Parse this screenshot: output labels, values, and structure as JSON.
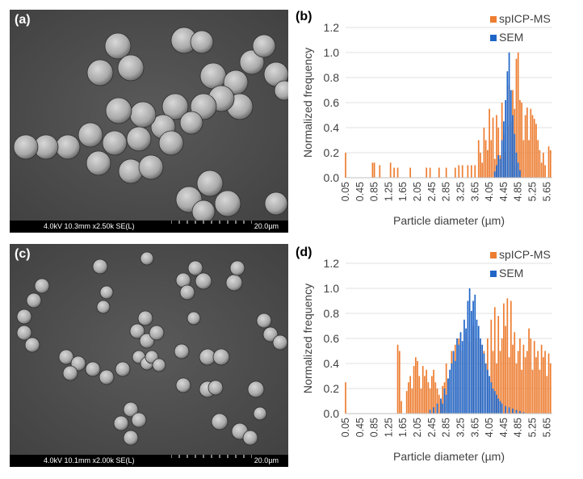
{
  "panels": [
    {
      "label": "(a)",
      "sem_info": "4.0kV 10.3mm x2.50k SE(L)",
      "sem_scale": "20.0µm"
    },
    {
      "label": "(c)",
      "sem_info": "4.0kV 10.1mm x2.00k SE(L)",
      "sem_scale": "20.0µm"
    }
  ],
  "chart_data": [
    {
      "panel_label": "(b)",
      "type": "bar",
      "ylabel": "Normalized frequency",
      "xlabel": "Particle diameter (µm)",
      "ylim": [
        0,
        1.2
      ],
      "yticks": [
        "0.0",
        "0.2",
        "0.4",
        "0.6",
        "0.8",
        "1.0",
        "1.2"
      ],
      "xticks": [
        "0.05",
        "0.45",
        "0.85",
        "1.25",
        "1.65",
        "2.05",
        "2.45",
        "2.85",
        "3.25",
        "3.65",
        "4.05",
        "4.45",
        "4.85",
        "5.25",
        "5.65"
      ],
      "grid": true,
      "legend_position": "top-right",
      "series": [
        {
          "name": "spICP-MS",
          "color": "#ed7d31",
          "points": [
            [
              0.05,
              0.2
            ],
            [
              0.8,
              0.12
            ],
            [
              0.85,
              0.12
            ],
            [
              1.0,
              0.1
            ],
            [
              1.3,
              0.12
            ],
            [
              1.4,
              0.08
            ],
            [
              1.5,
              0.08
            ],
            [
              1.85,
              0.08
            ],
            [
              2.3,
              0.08
            ],
            [
              2.4,
              0.08
            ],
            [
              2.65,
              0.08
            ],
            [
              2.85,
              0.08
            ],
            [
              3.1,
              0.08
            ],
            [
              3.2,
              0.1
            ],
            [
              3.3,
              0.1
            ],
            [
              3.45,
              0.1
            ],
            [
              3.55,
              0.1
            ],
            [
              3.65,
              0.1
            ],
            [
              3.75,
              0.3
            ],
            [
              3.8,
              0.2
            ],
            [
              3.85,
              0.12
            ],
            [
              3.9,
              0.4
            ],
            [
              3.95,
              0.3
            ],
            [
              4.0,
              0.22
            ],
            [
              4.05,
              0.55
            ],
            [
              4.1,
              0.3
            ],
            [
              4.15,
              0.48
            ],
            [
              4.2,
              0.15
            ],
            [
              4.25,
              0.5
            ],
            [
              4.3,
              0.4
            ],
            [
              4.35,
              0.18
            ],
            [
              4.4,
              0.6
            ],
            [
              4.45,
              0.35
            ],
            [
              4.5,
              0.2
            ],
            [
              4.55,
              0.42
            ],
            [
              4.6,
              0.74
            ],
            [
              4.65,
              0.45
            ],
            [
              4.7,
              0.7
            ],
            [
              4.75,
              0.55
            ],
            [
              4.8,
              0.95
            ],
            [
              4.85,
              1.0
            ],
            [
              4.9,
              0.62
            ],
            [
              4.95,
              0.6
            ],
            [
              5.0,
              0.3
            ],
            [
              5.05,
              0.5
            ],
            [
              5.1,
              0.56
            ],
            [
              5.15,
              0.3
            ],
            [
              5.2,
              0.55
            ],
            [
              5.25,
              0.5
            ],
            [
              5.3,
              0.47
            ],
            [
              5.35,
              0.43
            ],
            [
              5.4,
              0.3
            ],
            [
              5.45,
              0.22
            ],
            [
              5.5,
              0.12
            ],
            [
              5.55,
              0.2
            ],
            [
              5.6,
              0.1
            ],
            [
              5.7,
              0.25
            ],
            [
              5.75,
              0.22
            ]
          ]
        },
        {
          "name": "SEM",
          "color": "#1f65c8",
          "points": [
            [
              4.2,
              0.05
            ],
            [
              4.25,
              0.1
            ],
            [
              4.3,
              0.18
            ],
            [
              4.35,
              0.15
            ],
            [
              4.4,
              0.3
            ],
            [
              4.45,
              0.45
            ],
            [
              4.5,
              0.62
            ],
            [
              4.55,
              0.85
            ],
            [
              4.6,
              1.0
            ],
            [
              4.65,
              0.7
            ],
            [
              4.7,
              0.5
            ],
            [
              4.75,
              0.35
            ],
            [
              4.8,
              0.2
            ],
            [
              4.85,
              0.12
            ],
            [
              4.9,
              0.06
            ]
          ]
        }
      ]
    },
    {
      "panel_label": "(d)",
      "type": "bar",
      "ylabel": "Normalized frequency",
      "xlabel": "Particle diameter (µm)",
      "ylim": [
        0,
        1.2
      ],
      "yticks": [
        "0.0",
        "0.2",
        "0.4",
        "0.6",
        "0.8",
        "1.0",
        "1.2"
      ],
      "xticks": [
        "0.05",
        "0.45",
        "0.85",
        "1.25",
        "1.65",
        "2.05",
        "2.45",
        "2.85",
        "3.25",
        "3.65",
        "4.05",
        "4.45",
        "4.85",
        "5.25",
        "5.65"
      ],
      "grid": true,
      "legend_position": "top-right",
      "series": [
        {
          "name": "spICP-MS",
          "color": "#ed7d31",
          "points": [
            [
              0.05,
              0.25
            ],
            [
              1.5,
              0.55
            ],
            [
              1.55,
              0.5
            ],
            [
              1.6,
              0.1
            ],
            [
              1.75,
              0.18
            ],
            [
              1.8,
              0.25
            ],
            [
              1.85,
              0.3
            ],
            [
              1.9,
              0.2
            ],
            [
              1.95,
              0.38
            ],
            [
              2.0,
              0.45
            ],
            [
              2.05,
              0.42
            ],
            [
              2.1,
              0.3
            ],
            [
              2.15,
              0.2
            ],
            [
              2.2,
              0.38
            ],
            [
              2.25,
              0.3
            ],
            [
              2.3,
              0.35
            ],
            [
              2.35,
              0.25
            ],
            [
              2.4,
              0.2
            ],
            [
              2.45,
              0.3
            ],
            [
              2.5,
              0.35
            ],
            [
              2.55,
              0.25
            ],
            [
              2.6,
              0.2
            ],
            [
              2.65,
              0.15
            ],
            [
              2.7,
              0.1
            ],
            [
              2.75,
              0.22
            ],
            [
              2.8,
              0.25
            ],
            [
              2.85,
              0.4
            ],
            [
              2.9,
              0.28
            ],
            [
              3.0,
              0.5
            ],
            [
              3.1,
              0.55
            ],
            [
              3.2,
              0.6
            ],
            [
              3.3,
              0.5
            ],
            [
              3.4,
              0.65
            ],
            [
              3.5,
              0.58
            ],
            [
              3.6,
              0.7
            ],
            [
              3.7,
              0.6
            ],
            [
              3.8,
              0.55
            ],
            [
              3.9,
              0.5
            ],
            [
              4.0,
              0.6
            ],
            [
              4.1,
              0.75
            ],
            [
              4.15,
              0.5
            ],
            [
              4.2,
              0.85
            ],
            [
              4.25,
              0.4
            ],
            [
              4.3,
              0.78
            ],
            [
              4.35,
              0.5
            ],
            [
              4.4,
              0.6
            ],
            [
              4.45,
              0.88
            ],
            [
              4.5,
              0.7
            ],
            [
              4.55,
              0.92
            ],
            [
              4.6,
              0.45
            ],
            [
              4.65,
              0.9
            ],
            [
              4.7,
              0.55
            ],
            [
              4.75,
              0.65
            ],
            [
              4.8,
              0.4
            ],
            [
              4.85,
              0.5
            ],
            [
              4.9,
              0.6
            ],
            [
              4.95,
              0.35
            ],
            [
              5.0,
              0.55
            ],
            [
              5.05,
              0.45
            ],
            [
              5.1,
              0.5
            ],
            [
              5.15,
              0.68
            ],
            [
              5.2,
              0.6
            ],
            [
              5.25,
              0.35
            ],
            [
              5.3,
              0.58
            ],
            [
              5.35,
              0.45
            ],
            [
              5.4,
              0.5
            ],
            [
              5.45,
              0.35
            ],
            [
              5.5,
              0.55
            ],
            [
              5.55,
              0.45
            ],
            [
              5.6,
              0.5
            ],
            [
              5.65,
              0.3
            ],
            [
              5.7,
              0.48
            ],
            [
              5.75,
              0.4
            ]
          ]
        },
        {
          "name": "SEM",
          "color": "#1f65c8",
          "points": [
            [
              2.4,
              0.03
            ],
            [
              2.5,
              0.05
            ],
            [
              2.6,
              0.08
            ],
            [
              2.7,
              0.12
            ],
            [
              2.75,
              0.08
            ],
            [
              2.8,
              0.2
            ],
            [
              2.85,
              0.15
            ],
            [
              2.9,
              0.28
            ],
            [
              2.95,
              0.35
            ],
            [
              3.0,
              0.4
            ],
            [
              3.05,
              0.5
            ],
            [
              3.1,
              0.42
            ],
            [
              3.15,
              0.6
            ],
            [
              3.2,
              0.55
            ],
            [
              3.25,
              0.65
            ],
            [
              3.3,
              0.58
            ],
            [
              3.35,
              0.75
            ],
            [
              3.4,
              0.68
            ],
            [
              3.45,
              0.9
            ],
            [
              3.5,
              1.0
            ],
            [
              3.55,
              0.82
            ],
            [
              3.6,
              0.9
            ],
            [
              3.65,
              0.95
            ],
            [
              3.7,
              0.75
            ],
            [
              3.75,
              0.7
            ],
            [
              3.8,
              0.6
            ],
            [
              3.85,
              0.55
            ],
            [
              3.9,
              0.48
            ],
            [
              3.95,
              0.4
            ],
            [
              4.0,
              0.35
            ],
            [
              4.05,
              0.3
            ],
            [
              4.1,
              0.25
            ],
            [
              4.15,
              0.2
            ],
            [
              4.2,
              0.18
            ],
            [
              4.25,
              0.15
            ],
            [
              4.3,
              0.12
            ],
            [
              4.35,
              0.1
            ],
            [
              4.4,
              0.08
            ],
            [
              4.5,
              0.06
            ],
            [
              4.6,
              0.05
            ],
            [
              4.7,
              0.04
            ],
            [
              4.8,
              0.03
            ],
            [
              4.9,
              0.02
            ],
            [
              5.0,
              0.01
            ]
          ]
        }
      ]
    }
  ]
}
